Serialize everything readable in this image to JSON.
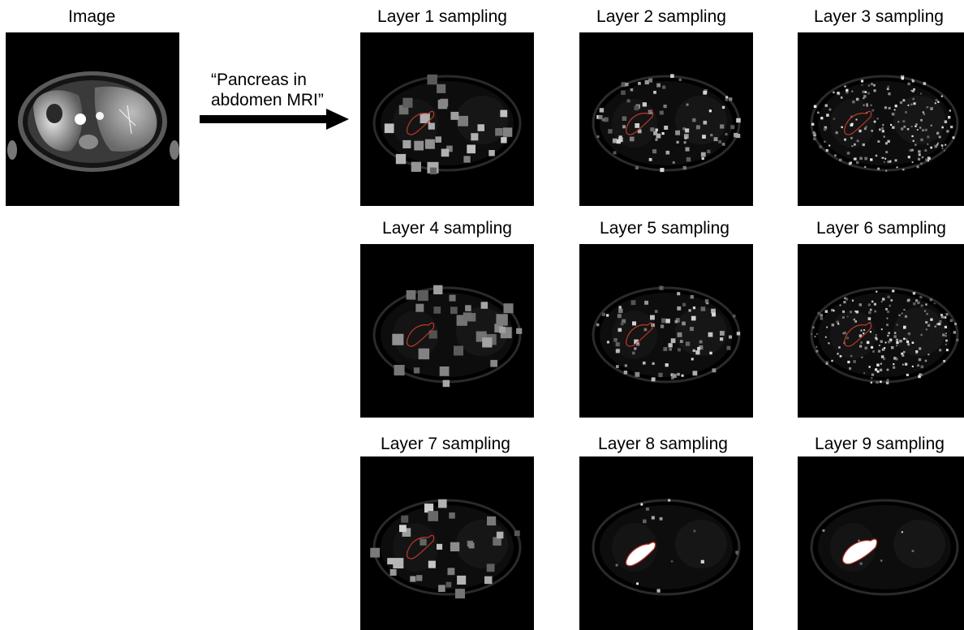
{
  "input": {
    "title": "Image"
  },
  "prompt": {
    "line1": "“Pancreas in",
    "line2": "abdomen MRI”"
  },
  "layers": [
    {
      "title": "Layer 1 sampling",
      "density": 0.25,
      "size": 12,
      "seed": 11,
      "bright": 0.7
    },
    {
      "title": "Layer 2 sampling",
      "density": 0.7,
      "size": 5,
      "seed": 23,
      "bright": 0.85
    },
    {
      "title": "Layer 3 sampling",
      "density": 1.6,
      "size": 3,
      "seed": 37,
      "bright": 0.9
    },
    {
      "title": "Layer 4 sampling",
      "density": 0.25,
      "size": 12,
      "seed": 41,
      "bright": 0.55
    },
    {
      "title": "Layer 5 sampling",
      "density": 0.7,
      "size": 5,
      "seed": 53,
      "bright": 0.8
    },
    {
      "title": "Layer 6 sampling",
      "density": 1.6,
      "size": 3,
      "seed": 67,
      "bright": 0.9
    },
    {
      "title": "Layer 7 sampling",
      "density": 0.25,
      "size": 11,
      "seed": 71,
      "bright": 0.75
    },
    {
      "title": "Layer 8 sampling",
      "density": 0.12,
      "size": 4,
      "seed": 83,
      "bright": 0.9
    },
    {
      "title": "Layer 9 sampling",
      "density": 0.05,
      "size": 3,
      "seed": 97,
      "bright": 0.95
    }
  ],
  "colors": {
    "outline": "#c0392b",
    "panel_bg": "#000000",
    "segmentation": "#ffffff"
  }
}
